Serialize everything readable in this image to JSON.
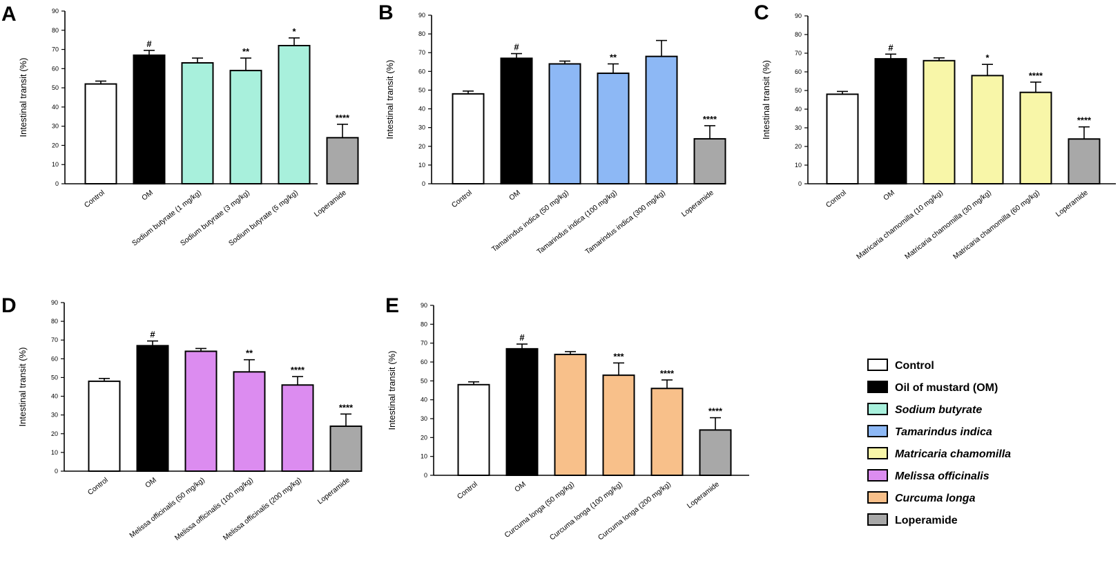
{
  "legend": [
    {
      "label": "Control",
      "color": "#ffffff",
      "italic": false
    },
    {
      "label": "Oil of mustard (OM)",
      "color": "#000000",
      "italic": false
    },
    {
      "label": "Sodium butyrate",
      "color": "#a8f0dc",
      "italic": true
    },
    {
      "label": "Tamarindus indica",
      "color": "#8db8f5",
      "italic": true
    },
    {
      "label": "Matricaria chamomilla",
      "color": "#f8f6a8",
      "italic": true
    },
    {
      "label": "Melissa officinalis",
      "color": "#dc8cf0",
      "italic": true
    },
    {
      "label": "Curcuma longa",
      "color": "#f8c08a",
      "italic": true
    },
    {
      "label": "Loperamide",
      "color": "#a8a8a8",
      "italic": false
    }
  ],
  "chart_data": [
    {
      "panel": "A",
      "type": "bar",
      "ylabel": "Intestinal transit (%)",
      "ylim": [
        0,
        90
      ],
      "yticks": [
        0,
        10,
        20,
        30,
        40,
        50,
        60,
        70,
        80,
        90
      ],
      "categories": [
        "Control",
        "OM",
        "Sodium butyrate (1 mg/kg)",
        "Sodium butyrate (3 mg/kg)",
        "Sodium butyrate (5 mg/kg)",
        "Loperamide"
      ],
      "values": [
        52,
        67,
        63,
        59,
        72,
        24
      ],
      "errors": [
        1.5,
        2.5,
        2.5,
        6.5,
        4,
        7
      ],
      "significance": [
        "",
        "#",
        "",
        "**",
        "*",
        "****"
      ],
      "colors": [
        "#ffffff",
        "#000000",
        "#a8f0dc",
        "#a8f0dc",
        "#a8f0dc",
        "#a8a8a8"
      ]
    },
    {
      "panel": "B",
      "type": "bar",
      "ylabel": "Intestinal transit (%)",
      "ylim": [
        0,
        90
      ],
      "yticks": [
        0,
        10,
        20,
        30,
        40,
        50,
        60,
        70,
        80,
        90
      ],
      "categories": [
        "Control",
        "OM",
        "Tamarindus indica (50 mg/kg)",
        "Tamarindus indica (100 mg/kg)",
        "Tamarindus indica (300 mg/kg)",
        "Loperamide"
      ],
      "values": [
        48,
        67,
        64,
        59,
        68,
        24
      ],
      "errors": [
        1.5,
        2.5,
        1.5,
        5,
        8.5,
        7
      ],
      "significance": [
        "",
        "#",
        "",
        "**",
        "",
        "****"
      ],
      "colors": [
        "#ffffff",
        "#000000",
        "#8db8f5",
        "#8db8f5",
        "#8db8f5",
        "#a8a8a8"
      ]
    },
    {
      "panel": "C",
      "type": "bar",
      "ylabel": "Intestinal transit (%)",
      "ylim": [
        0,
        90
      ],
      "yticks": [
        0,
        10,
        20,
        30,
        40,
        50,
        60,
        70,
        80,
        90
      ],
      "categories": [
        "Control",
        "OM",
        "Matricaria chamomilla (10 mg/kg)",
        "Matricaria chamomilla (30 mg/kg)",
        "Matricaria chamomilla (60 mg/kg)",
        "Loperamide"
      ],
      "values": [
        48,
        67,
        66,
        58,
        49,
        24
      ],
      "errors": [
        1.5,
        2.5,
        1.5,
        6,
        5.5,
        6.5
      ],
      "significance": [
        "",
        "#",
        "",
        "*",
        "****",
        "****"
      ],
      "colors": [
        "#ffffff",
        "#000000",
        "#f8f6a8",
        "#f8f6a8",
        "#f8f6a8",
        "#a8a8a8"
      ]
    },
    {
      "panel": "D",
      "type": "bar",
      "ylabel": "Intestinal transit (%)",
      "ylim": [
        0,
        90
      ],
      "yticks": [
        0,
        10,
        20,
        30,
        40,
        50,
        60,
        70,
        80,
        90
      ],
      "categories": [
        "Control",
        "OM",
        "Melissa officinalis (50 mg/kg)",
        "Melissa officinalis (100 mg/kg)",
        "Melissa officinalis (200 mg/kg)",
        "Loperamide"
      ],
      "values": [
        48,
        67,
        64,
        53,
        46,
        24
      ],
      "errors": [
        1.5,
        2.5,
        1.5,
        6.5,
        4.5,
        6.5
      ],
      "significance": [
        "",
        "#",
        "",
        "**",
        "****",
        "****"
      ],
      "colors": [
        "#ffffff",
        "#000000",
        "#dc8cf0",
        "#dc8cf0",
        "#dc8cf0",
        "#a8a8a8"
      ]
    },
    {
      "panel": "E",
      "type": "bar",
      "ylabel": "Intestinal transit (%)",
      "ylim": [
        0,
        90
      ],
      "yticks": [
        0,
        10,
        20,
        30,
        40,
        50,
        60,
        70,
        80,
        90
      ],
      "categories": [
        "Control",
        "OM",
        "Curcuma longa (50 mg/kg)",
        "Curcuma longa (100 mg/kg)",
        "Curcuma longa (200 mg/kg)",
        "Loperamide"
      ],
      "values": [
        48,
        67,
        64,
        53,
        46,
        24
      ],
      "errors": [
        1.5,
        2.5,
        1.5,
        6.5,
        4.5,
        6.5
      ],
      "significance": [
        "",
        "#",
        "",
        "***",
        "****",
        "****"
      ],
      "colors": [
        "#ffffff",
        "#000000",
        "#f8c08a",
        "#f8c08a",
        "#f8c08a",
        "#a8a8a8"
      ]
    }
  ]
}
